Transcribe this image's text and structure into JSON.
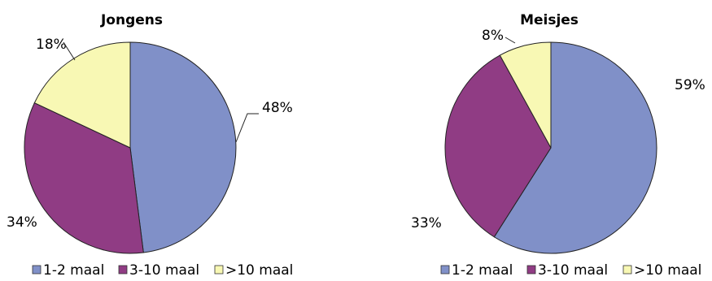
{
  "chart_data": [
    {
      "type": "pie",
      "title": "Jongens",
      "categories": [
        "1-2 maal",
        "3-10 maal",
        ">10 maal"
      ],
      "values": [
        48,
        34,
        18
      ],
      "labels": [
        "48%",
        "34%",
        "18%"
      ],
      "legend_position": "bottom",
      "colors": [
        "#8090C8",
        "#903C84",
        "#F8F8B4"
      ]
    },
    {
      "type": "pie",
      "title": "Meisjes",
      "categories": [
        "1-2 maal",
        "3-10 maal",
        ">10 maal"
      ],
      "values": [
        59,
        33,
        8
      ],
      "labels": [
        "59%",
        "33%",
        "8%"
      ],
      "legend_position": "bottom",
      "colors": [
        "#8090C8",
        "#903C84",
        "#F8F8B4"
      ]
    }
  ]
}
